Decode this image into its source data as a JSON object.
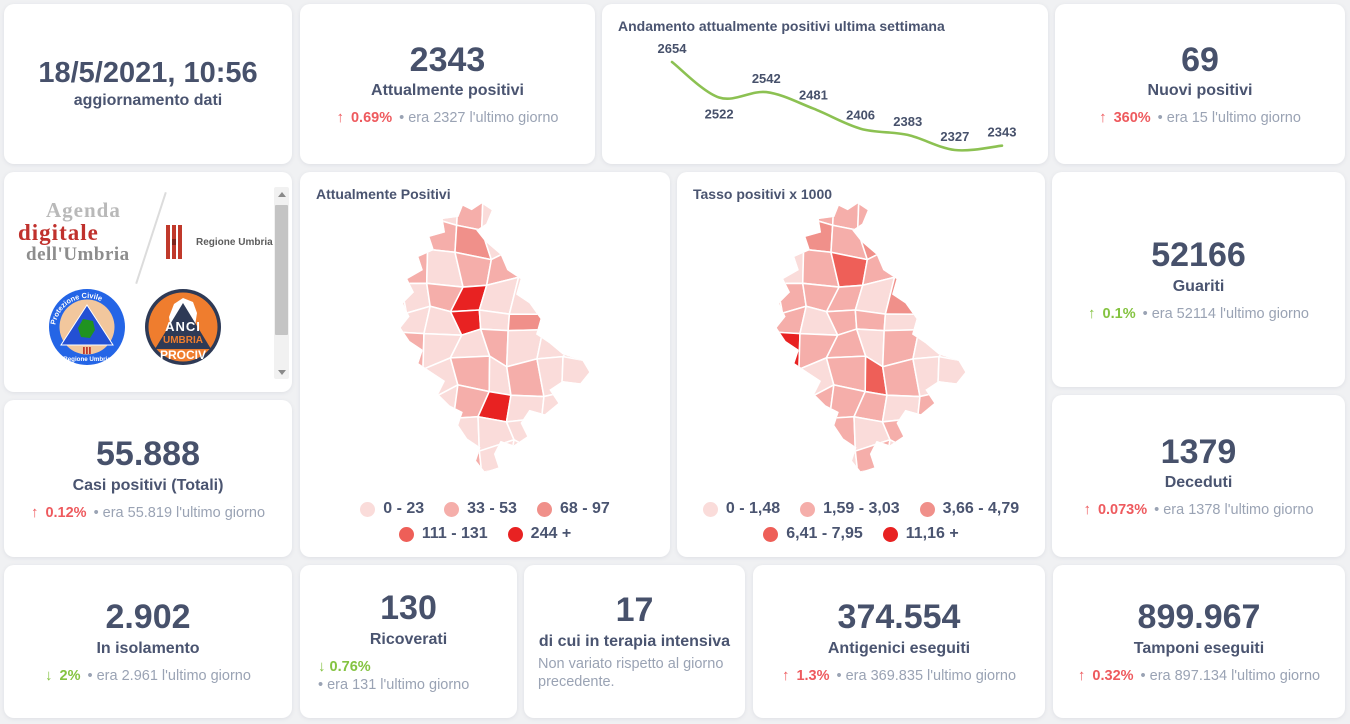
{
  "colors": {
    "dark": "#47516b",
    "red": "#ee5a5e",
    "green": "#84c341",
    "gray": "#9aa3b4",
    "chart_line": "#8cc152",
    "page_bg": "#f0f1f3",
    "card_bg": "#ffffff"
  },
  "cards": {
    "updated": {
      "value": "18/5/2021, 10:56",
      "label": "aggiornamento dati"
    },
    "attualmente": {
      "value": "2343",
      "label": "Attualmente positivi",
      "delta": {
        "arrow": "↑",
        "pct": "0.69%",
        "color": "#ee5a5e",
        "note": "• era 2327 l'ultimo giorno"
      }
    },
    "nuovi": {
      "value": "69",
      "label": "Nuovi positivi",
      "delta": {
        "arrow": "↑",
        "pct": "360%",
        "color": "#ee5a5e",
        "note": "• era 15 l'ultimo giorno"
      }
    },
    "guariti": {
      "value": "52166",
      "label": "Guariti",
      "delta": {
        "arrow": "↑",
        "pct": "0.1%",
        "color": "#84c341",
        "note": "• era 52114 l'ultimo giorno"
      }
    },
    "casi": {
      "value": "55.888",
      "label": "Casi positivi (Totali)",
      "delta": {
        "arrow": "↑",
        "pct": "0.12%",
        "color": "#ee5a5e",
        "note": "• era 55.819 l'ultimo giorno"
      }
    },
    "deceduti": {
      "value": "1379",
      "label": "Deceduti",
      "delta": {
        "arrow": "↑",
        "pct": "0.073%",
        "color": "#ee5a5e",
        "note": "• era 1378 l'ultimo giorno"
      }
    },
    "isolamento": {
      "value": "2.902",
      "label": "In isolamento",
      "delta": {
        "arrow": "↓",
        "pct": "2%",
        "color": "#84c341",
        "note": "• era 2.961 l'ultimo giorno"
      }
    },
    "ricoverati": {
      "value": "130",
      "label": "Ricoverati",
      "delta": {
        "arrow": "↓",
        "pct": "0.76%",
        "color": "#84c341",
        "note": "• era 131 l'ultimo giorno"
      }
    },
    "terapia": {
      "value": "17",
      "label": "di cui in terapia intensiva",
      "note": "Non variato rispetto al giorno precedente."
    },
    "antigenici": {
      "value": "374.554",
      "label": "Antigenici eseguiti",
      "delta": {
        "arrow": "↑",
        "pct": "1.3%",
        "color": "#ee5a5e",
        "note": "• era 369.835 l'ultimo giorno"
      }
    },
    "tamponi": {
      "value": "899.967",
      "label": "Tamponi eseguiti",
      "delta": {
        "arrow": "↑",
        "pct": "0.32%",
        "color": "#ee5a5e",
        "note": "• era 897.134 l'ultimo giorno"
      }
    }
  },
  "chart_data": [
    {
      "type": "line",
      "title": "Andamento attualmente positivi ultima settimana",
      "x": [
        1,
        2,
        3,
        4,
        5,
        6,
        7,
        8
      ],
      "values": [
        2654,
        2522,
        2542,
        2481,
        2406,
        2383,
        2327,
        2343
      ],
      "line_color": "#8cc152",
      "data_labels": true,
      "axes": "hidden",
      "ylim": [
        2300,
        2700
      ]
    },
    {
      "type": "heatmap",
      "subtype": "choropleth-map-umbria",
      "title": "Attualmente Positivi",
      "legend": [
        {
          "label": "0 - 23",
          "color": "#fadcda"
        },
        {
          "label": "33 - 53",
          "color": "#f5aeaa"
        },
        {
          "label": "68 - 97",
          "color": "#f0908a"
        },
        {
          "label": "111 - 131",
          "color": "#ee5f58"
        },
        {
          "label": "244 +",
          "color": "#e82222"
        }
      ],
      "cells": [
        "00010000",
        "00120000",
        "01011000",
        "00140000",
        "00040200",
        "01001000",
        "00010100",
        "00014000",
        "00100000",
        "00010000"
      ]
    },
    {
      "type": "heatmap",
      "subtype": "choropleth-map-umbria",
      "title": "Tasso positivi x 1000",
      "legend": [
        {
          "label": "0 - 1,48",
          "color": "#fadcda"
        },
        {
          "label": "1,59 - 3,03",
          "color": "#f5aeaa"
        },
        {
          "label": "3,66 - 4,79",
          "color": "#f0908a"
        },
        {
          "label": "6,41 - 7,95",
          "color": "#ee5f58"
        },
        {
          "label": "11,16 +",
          "color": "#e82222"
        }
      ],
      "cells": [
        "00111000",
        "01212000",
        "10131100",
        "01110210",
        "11011010",
        "04110100",
        "01013100",
        "00111010",
        "01010100",
        "00101000"
      ]
    }
  ],
  "logos": {
    "agenda": {
      "line1": "Agenda",
      "line2": "digitale",
      "line3": "dell'Umbria"
    },
    "regione": {
      "name": "Regione Umbria"
    },
    "protezione": {
      "top": "Protezione Civile",
      "bottom": "Regione Umbria"
    },
    "anci": {
      "line1": "ANCI",
      "line2": "UMBRIA",
      "line3": "PROCIV"
    }
  }
}
